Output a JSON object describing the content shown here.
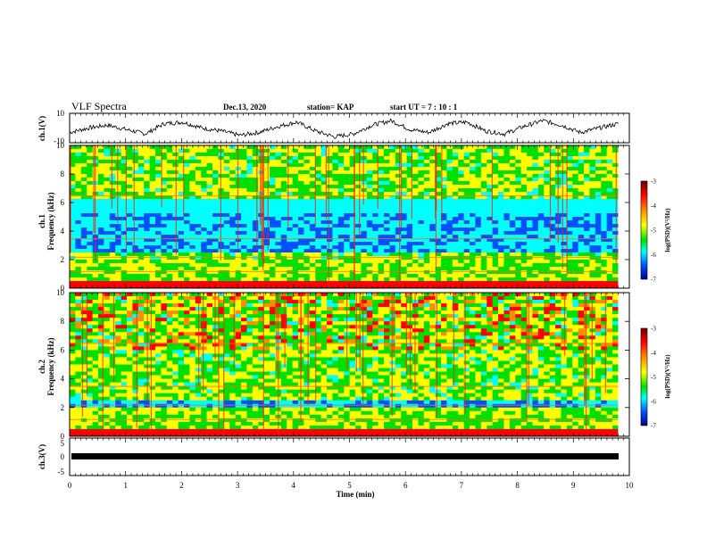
{
  "header": {
    "title": "VLF Spectra",
    "date": "Dec.13, 2020",
    "station": "station= KAP",
    "start": "start  UT =   7 : 10 : 1"
  },
  "colorbar": {
    "label": "log(PSD)(V²/Hz)",
    "ticks": [
      "-3",
      "-4",
      "-5",
      "-6",
      "-7"
    ],
    "colors": [
      "#6e0000",
      "#ff0000",
      "#ff8c00",
      "#ffff00",
      "#00e000",
      "#00ffff",
      "#0050ff",
      "#000090"
    ]
  },
  "chart_data": [
    {
      "type": "line",
      "ylabel": "ch.1(V)",
      "ylim": [
        -10,
        10
      ],
      "yticks": [
        "10",
        "-10"
      ],
      "xlim": [
        0,
        10
      ],
      "series": [
        {
          "values": [
            -3,
            0,
            2,
            -1,
            -4,
            3,
            4,
            0,
            -2,
            -5,
            -3,
            1,
            4,
            -2,
            -6,
            -4,
            2,
            5,
            -1,
            -3,
            3,
            4,
            -2,
            -4,
            1,
            5,
            2,
            -3,
            0,
            3
          ]
        }
      ]
    },
    {
      "type": "heatmap",
      "ylabel": "ch.1",
      "ylabel2": "Frequency (kHz)",
      "ylim": [
        0,
        10
      ],
      "yticks": [
        "10",
        "8",
        "6",
        "4",
        "2",
        "0"
      ],
      "xlim": [
        0,
        10
      ],
      "z_range": [
        -7,
        -3
      ]
    },
    {
      "type": "heatmap",
      "ylabel": "ch.2",
      "ylabel2": "Frequency (kHz)",
      "ylim": [
        0,
        10
      ],
      "yticks": [
        "10",
        "8",
        "6",
        "4",
        "2",
        "0"
      ],
      "xlim": [
        0,
        10
      ],
      "z_range": [
        -7,
        -3
      ]
    },
    {
      "type": "line",
      "ylabel": "ch.3(V)",
      "ylim": [
        -5,
        5
      ],
      "yticks": [
        "5",
        "0",
        "-5"
      ],
      "xlim": [
        0,
        10
      ],
      "series": [
        {
          "values": [
            0,
            0
          ]
        }
      ]
    }
  ],
  "xaxis": {
    "label": "Time (min)",
    "ticks": [
      "0",
      "1",
      "2",
      "3",
      "4",
      "5",
      "6",
      "7",
      "8",
      "9",
      "10"
    ]
  }
}
